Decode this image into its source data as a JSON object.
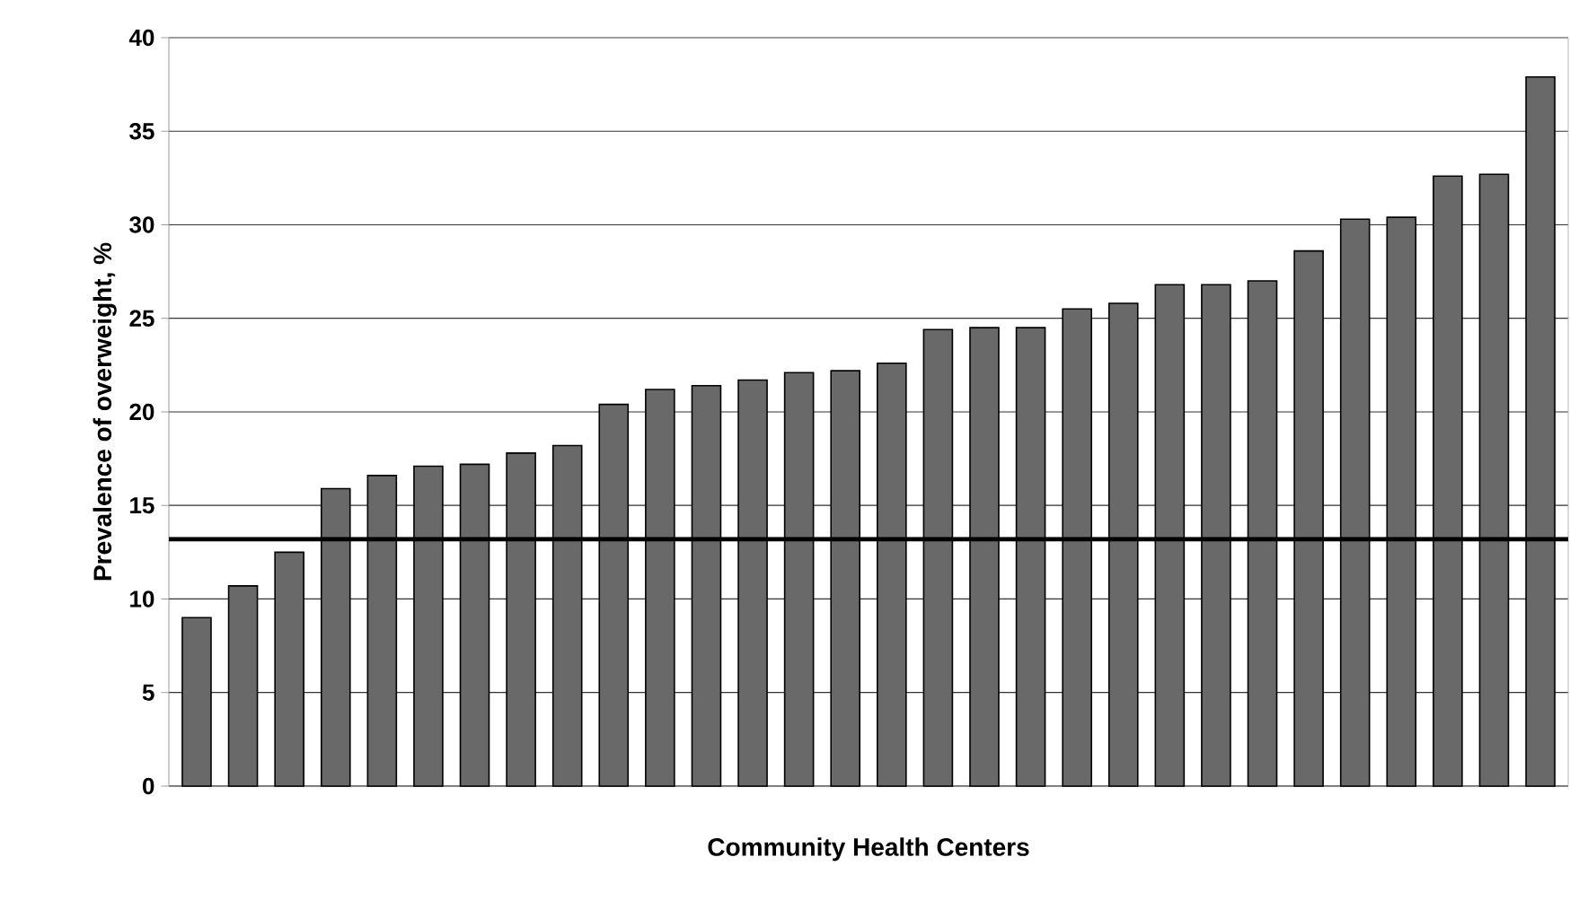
{
  "chart_data": {
    "type": "bar",
    "xlabel": "Community Health Centers",
    "ylabel": "Prevalence of overweight, %",
    "categories": [
      null,
      null,
      null,
      null,
      null,
      null,
      null,
      null,
      null,
      null,
      null,
      null,
      null,
      null,
      null,
      null,
      null,
      null,
      null,
      null,
      null,
      null,
      null,
      null,
      null,
      null,
      null,
      null,
      null,
      null
    ],
    "values": [
      9.0,
      10.7,
      12.5,
      15.9,
      16.6,
      17.1,
      17.2,
      17.8,
      18.2,
      20.4,
      21.2,
      21.4,
      21.7,
      22.1,
      22.2,
      22.6,
      24.4,
      24.5,
      24.5,
      25.5,
      25.8,
      26.8,
      26.8,
      27.0,
      28.6,
      30.3,
      30.4,
      32.6,
      32.7,
      37.9
    ],
    "color": "#696969",
    "ylim": [
      0,
      40
    ],
    "yticks": [
      0,
      5,
      10,
      15,
      20,
      25,
      30,
      35,
      40
    ],
    "grid": "y",
    "ref_lines": [
      {
        "axis": "y",
        "value": 13.2,
        "color": "#000000"
      }
    ]
  }
}
